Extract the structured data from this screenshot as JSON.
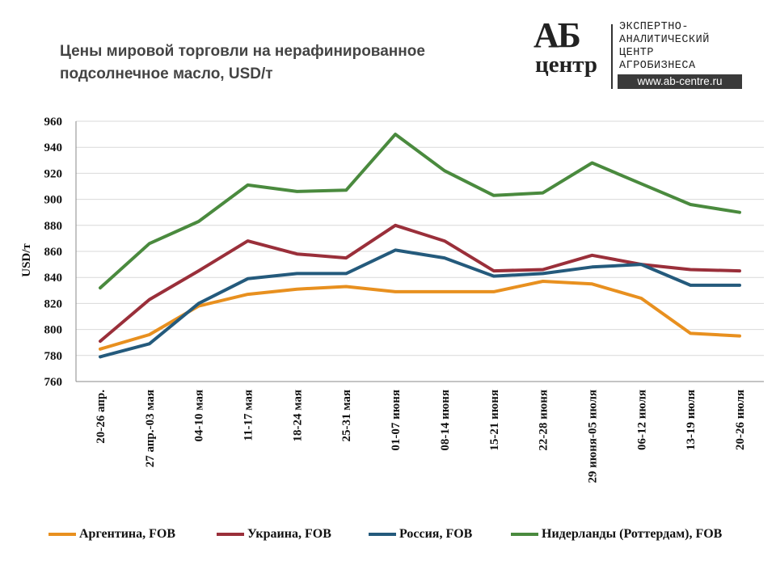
{
  "header": {
    "title_line1": "Цены мировой торговли на нерафинированное",
    "title_line2": "подсолнечное масло, USD/т"
  },
  "logo": {
    "ab": "АБ",
    "centr": "центр",
    "line1": "ЭКСПЕРТНО-",
    "line2": "АНАЛИТИЧЕСКИЙ",
    "line3": "ЦЕНТР",
    "line4": "АГРОБИЗНЕСА",
    "url": "www.ab-centre.ru"
  },
  "chart_data": {
    "type": "line",
    "title": "Цены мировой торговли на нерафинированное подсолнечное масло, USD/т",
    "xlabel": "",
    "ylabel": "USD/т",
    "ylim": [
      760,
      960
    ],
    "yticks": [
      760,
      780,
      800,
      820,
      840,
      860,
      880,
      900,
      920,
      940,
      960
    ],
    "grid": true,
    "legend_position": "bottom",
    "categories": [
      "20-26 апр.",
      "27 апр.-03 мая",
      "04-10 мая",
      "11-17 мая",
      "18-24 мая",
      "25-31 мая",
      "01-07 июня",
      "08-14 июня",
      "15-21 июня",
      "22-28 июня",
      "29 июня-05 июля",
      "06-12 июля",
      "13-19 июля",
      "20-26 июля"
    ],
    "series": [
      {
        "name": "Аргентина, FOB",
        "color": "#e8901f",
        "values": [
          785,
          796,
          818,
          827,
          831,
          833,
          829,
          829,
          829,
          837,
          835,
          824,
          797,
          795
        ]
      },
      {
        "name": "Украина, FOB",
        "color": "#9a2f3a",
        "values": [
          791,
          823,
          845,
          868,
          858,
          855,
          880,
          868,
          845,
          846,
          857,
          850,
          846,
          845
        ]
      },
      {
        "name": "Россия, FOB",
        "color": "#245a7c",
        "values": [
          779,
          789,
          820,
          839,
          843,
          843,
          861,
          855,
          841,
          843,
          848,
          850,
          834,
          834
        ]
      },
      {
        "name": "Нидерланды (Роттердам), FOB",
        "color": "#4a8a3e",
        "values": [
          832,
          866,
          883,
          911,
          906,
          907,
          950,
          922,
          903,
          905,
          928,
          912,
          896,
          890
        ]
      }
    ]
  }
}
